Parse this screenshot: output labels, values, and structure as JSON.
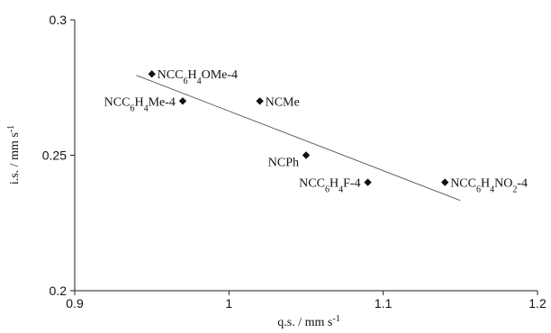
{
  "chart_data": {
    "type": "scatter",
    "title": "",
    "xlabel": {
      "base": "q.s. / mm s",
      "sup": "-1"
    },
    "ylabel": {
      "base": "i.s. / mm s",
      "sup": "-1"
    },
    "xlim": [
      0.9,
      1.2
    ],
    "ylim": [
      0.2,
      0.3
    ],
    "x_ticks": [
      {
        "value": 0.9,
        "label": "0.9"
      },
      {
        "value": 1.0,
        "label": "1"
      },
      {
        "value": 1.1,
        "label": "1.1"
      },
      {
        "value": 1.2,
        "label": "1.2"
      }
    ],
    "y_ticks": [
      {
        "value": 0.2,
        "label": "0.2"
      },
      {
        "value": 0.25,
        "label": "0.25"
      },
      {
        "value": 0.3,
        "label": "0.3"
      }
    ],
    "points": [
      {
        "x": 0.95,
        "y": 0.28,
        "label": [
          [
            "NCC",
            ""
          ],
          [
            "6",
            "sub"
          ],
          [
            "H",
            ""
          ],
          [
            "4",
            "sub"
          ],
          [
            "OMe-4",
            ""
          ]
        ],
        "anchor": "start",
        "dx": 6,
        "dy": 5
      },
      {
        "x": 0.97,
        "y": 0.27,
        "label": [
          [
            "NCC",
            ""
          ],
          [
            "6",
            "sub"
          ],
          [
            "H",
            ""
          ],
          [
            "4",
            "sub"
          ],
          [
            "Me-4",
            ""
          ]
        ],
        "anchor": "end",
        "dx": -8,
        "dy": 5
      },
      {
        "x": 1.02,
        "y": 0.27,
        "label": [
          [
            "NCMe",
            ""
          ]
        ],
        "anchor": "start",
        "dx": 6,
        "dy": 5
      },
      {
        "x": 1.05,
        "y": 0.25,
        "label": [
          [
            "NCPh",
            ""
          ]
        ],
        "anchor": "end",
        "dx": -8,
        "dy": 12
      },
      {
        "x": 1.09,
        "y": 0.24,
        "label": [
          [
            "NCC",
            ""
          ],
          [
            "6",
            "sub"
          ],
          [
            "H",
            ""
          ],
          [
            "4",
            "sub"
          ],
          [
            "F-4",
            ""
          ]
        ],
        "anchor": "end",
        "dx": -8,
        "dy": 5
      },
      {
        "x": 1.14,
        "y": 0.24,
        "label": [
          [
            "NCC",
            ""
          ],
          [
            "6",
            "sub"
          ],
          [
            "H",
            ""
          ],
          [
            "4",
            "sub"
          ],
          [
            "NO",
            ""
          ],
          [
            "2",
            "sub"
          ],
          [
            "-4",
            ""
          ]
        ],
        "anchor": "start",
        "dx": 6,
        "dy": 5
      }
    ],
    "fit_line": {
      "x": [
        0.94,
        1.15
      ],
      "y": [
        0.2795,
        0.2333
      ]
    },
    "grid": false,
    "legend": "none"
  }
}
